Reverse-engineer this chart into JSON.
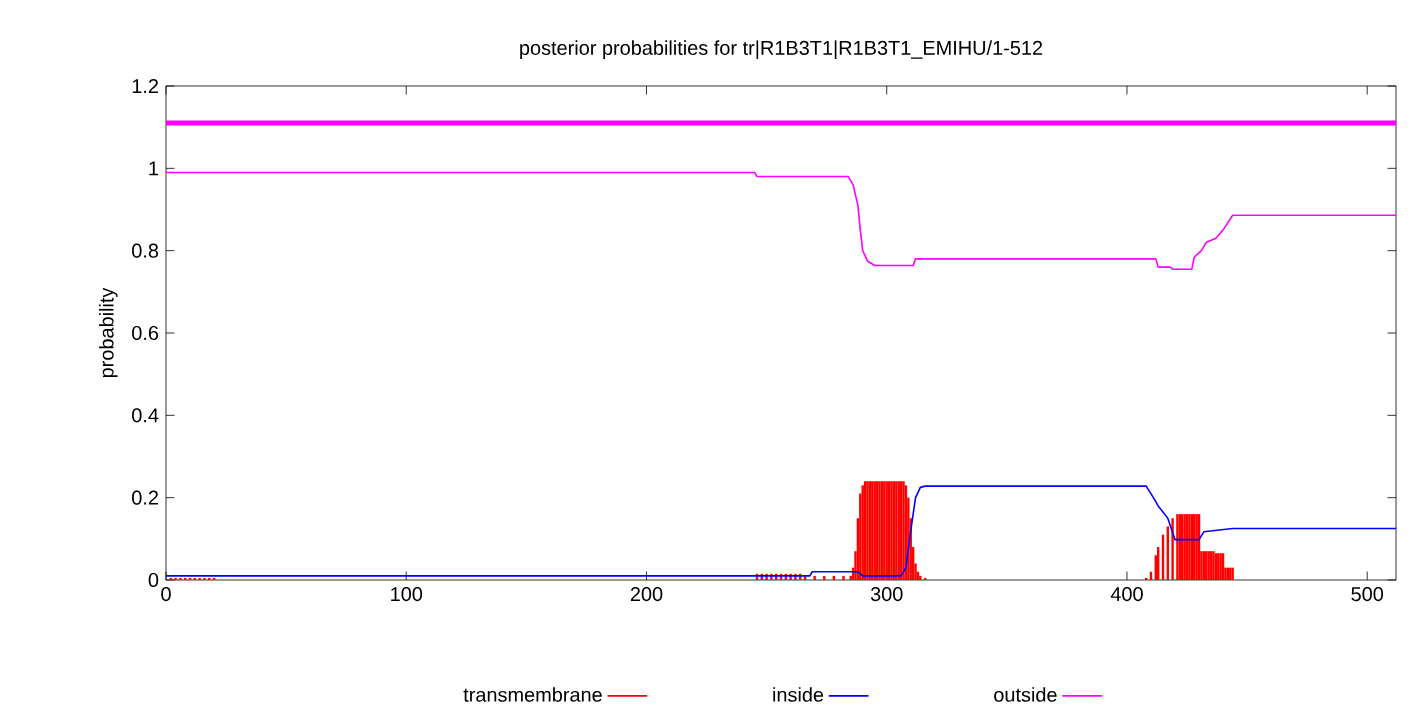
{
  "chart_data": {
    "type": "line",
    "title": "posterior probabilities for tr|R1B3T1|R1B3T1_EMIHU/1-512",
    "ylabel": "probability",
    "xlim": [
      0,
      512
    ],
    "ylim": [
      0,
      1.2
    ],
    "xticks": [
      0,
      100,
      200,
      300,
      400,
      500
    ],
    "yticks": [
      0,
      0.2,
      0.4,
      0.6,
      0.8,
      1,
      1.2
    ],
    "legend": "bottom",
    "marker": "none",
    "line_style": "solid",
    "ref_lines": [
      {
        "axis": "y",
        "value": 1.11,
        "color": "#ff00ff"
      }
    ],
    "series": [
      {
        "name": "transmembrane",
        "type": "bar",
        "color": "#ff0000",
        "x": [
          2,
          4,
          6,
          8,
          10,
          12,
          14,
          16,
          18,
          20,
          246,
          248,
          250,
          252,
          254,
          256,
          258,
          260,
          262,
          264,
          266,
          270,
          274,
          278,
          282,
          285,
          286,
          287,
          288,
          289,
          290,
          291,
          292,
          293,
          294,
          295,
          296,
          297,
          298,
          299,
          300,
          301,
          302,
          303,
          304,
          305,
          306,
          307,
          308,
          309,
          310,
          311,
          312,
          313,
          314,
          316,
          408,
          410,
          412,
          413,
          415,
          417,
          419,
          421,
          422,
          423,
          424,
          425,
          426,
          427,
          428,
          429,
          430,
          431,
          432,
          433,
          434,
          435,
          436,
          437,
          438,
          439,
          440,
          441,
          442,
          443,
          444
        ],
        "values": [
          0.005,
          0.005,
          0.005,
          0.005,
          0.005,
          0.005,
          0.005,
          0.005,
          0.005,
          0.005,
          0.015,
          0.015,
          0.015,
          0.015,
          0.015,
          0.015,
          0.015,
          0.015,
          0.015,
          0.015,
          0.01,
          0.01,
          0.01,
          0.01,
          0.01,
          0.01,
          0.03,
          0.07,
          0.15,
          0.21,
          0.23,
          0.24,
          0.24,
          0.24,
          0.24,
          0.24,
          0.24,
          0.24,
          0.24,
          0.24,
          0.24,
          0.24,
          0.24,
          0.24,
          0.24,
          0.24,
          0.24,
          0.24,
          0.23,
          0.2,
          0.15,
          0.08,
          0.04,
          0.02,
          0.01,
          0.005,
          0.005,
          0.02,
          0.06,
          0.08,
          0.11,
          0.13,
          0.15,
          0.16,
          0.16,
          0.16,
          0.16,
          0.16,
          0.16,
          0.16,
          0.16,
          0.16,
          0.16,
          0.07,
          0.07,
          0.07,
          0.07,
          0.07,
          0.07,
          0.065,
          0.065,
          0.065,
          0.065,
          0.03,
          0.03,
          0.03,
          0.03
        ]
      },
      {
        "name": "inside",
        "color": "#0000ff",
        "x": [
          0,
          268,
          269,
          288,
          290,
          306,
          308,
          310,
          312,
          314,
          316,
          408,
          411,
          413,
          417,
          420,
          430,
          432,
          444,
          512
        ],
        "values": [
          0.01,
          0.01,
          0.02,
          0.02,
          0.01,
          0.01,
          0.03,
          0.12,
          0.2,
          0.225,
          0.228,
          0.228,
          0.2,
          0.18,
          0.15,
          0.098,
          0.098,
          0.117,
          0.125,
          0.125
        ]
      },
      {
        "name": "outside",
        "color": "#ff00ff",
        "x": [
          0,
          245,
          246,
          284,
          286,
          288,
          289,
          290,
          292,
          295,
          311,
          312,
          412,
          413,
          418,
          419,
          427,
          428,
          431,
          433,
          437,
          440,
          444,
          512
        ],
        "values": [
          0.99,
          0.99,
          0.98,
          0.98,
          0.96,
          0.91,
          0.85,
          0.8,
          0.775,
          0.764,
          0.764,
          0.78,
          0.78,
          0.76,
          0.76,
          0.755,
          0.755,
          0.784,
          0.8,
          0.82,
          0.83,
          0.85,
          0.886,
          0.886
        ]
      }
    ]
  }
}
